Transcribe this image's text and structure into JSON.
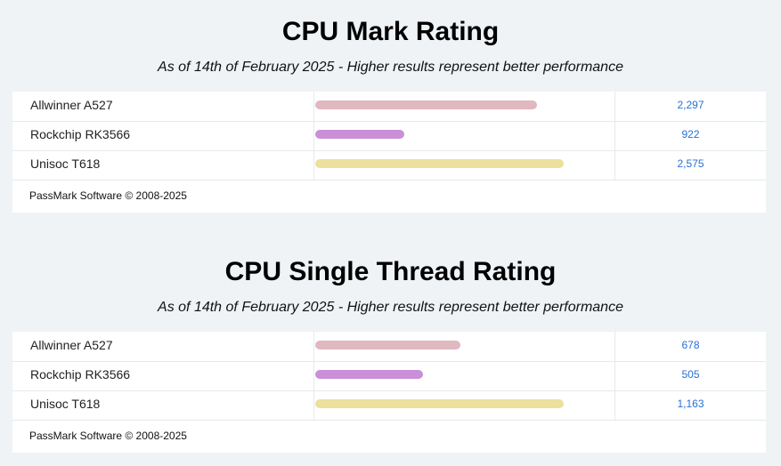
{
  "chart_data": [
    {
      "type": "bar",
      "title": "CPU Mark Rating",
      "subtitle": "As of 14th of February 2025 - Higher results represent better performance",
      "categories": [
        "Allwinner A527",
        "Rockchip RK3566",
        "Unisoc T618"
      ],
      "values": [
        2297,
        922,
        2575
      ],
      "value_labels": [
        "2,297",
        "922",
        "2,575"
      ],
      "colors": [
        "#e0b8c0",
        "#c98fd8",
        "#ece09c"
      ],
      "max": 2575,
      "footer": "PassMark Software © 2008-2025"
    },
    {
      "type": "bar",
      "title": "CPU Single Thread Rating",
      "subtitle": "As of 14th of February 2025 - Higher results represent better performance",
      "categories": [
        "Allwinner A527",
        "Rockchip RK3566",
        "Unisoc T618"
      ],
      "values": [
        678,
        505,
        1163
      ],
      "value_labels": [
        "678",
        "505",
        "1,163"
      ],
      "colors": [
        "#e0b8c0",
        "#c98fd8",
        "#ece09c"
      ],
      "max": 1163,
      "footer": "PassMark Software © 2008-2025"
    }
  ]
}
